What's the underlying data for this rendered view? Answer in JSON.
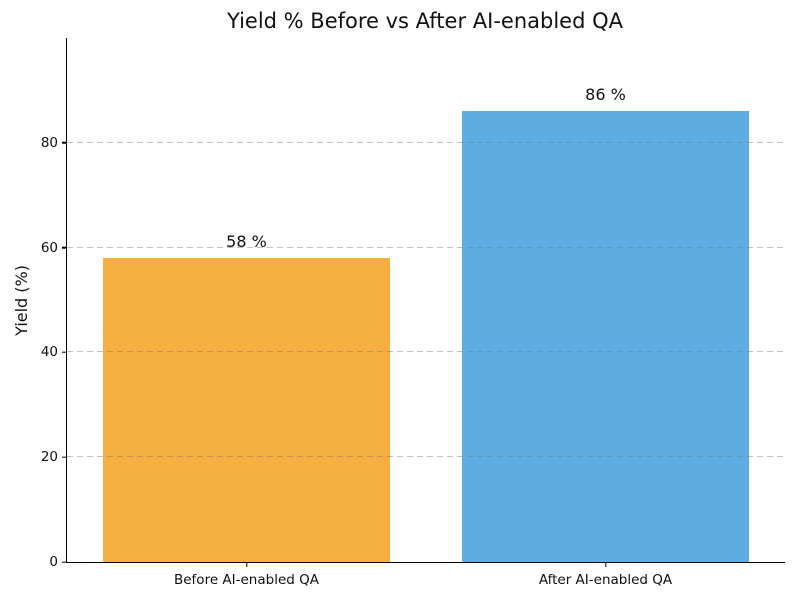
{
  "chart_data": {
    "type": "bar",
    "title": "Yield % Before vs After AI-enabled QA",
    "xlabel": "",
    "ylabel": "Yield (%)",
    "categories": [
      "Before AI-enabled QA",
      "After AI-enabled QA"
    ],
    "values": [
      58,
      86
    ],
    "bar_value_labels": [
      "58 %",
      "86 %"
    ],
    "bar_colors": [
      "#F5B041",
      "#5DADE2"
    ],
    "ylim": [
      0,
      100
    ],
    "yticks": [
      0,
      20,
      40,
      60,
      80
    ],
    "ytick_labels": [
      "0",
      "20",
      "40",
      "60",
      "80"
    ],
    "grid": {
      "axis": "y",
      "line_style": "dashed",
      "color": "#9e9e9e",
      "drawn_over_bars": true
    },
    "legend_position": "none",
    "background_color": "#ffffff",
    "spines_visible": [
      "left",
      "bottom"
    ]
  }
}
